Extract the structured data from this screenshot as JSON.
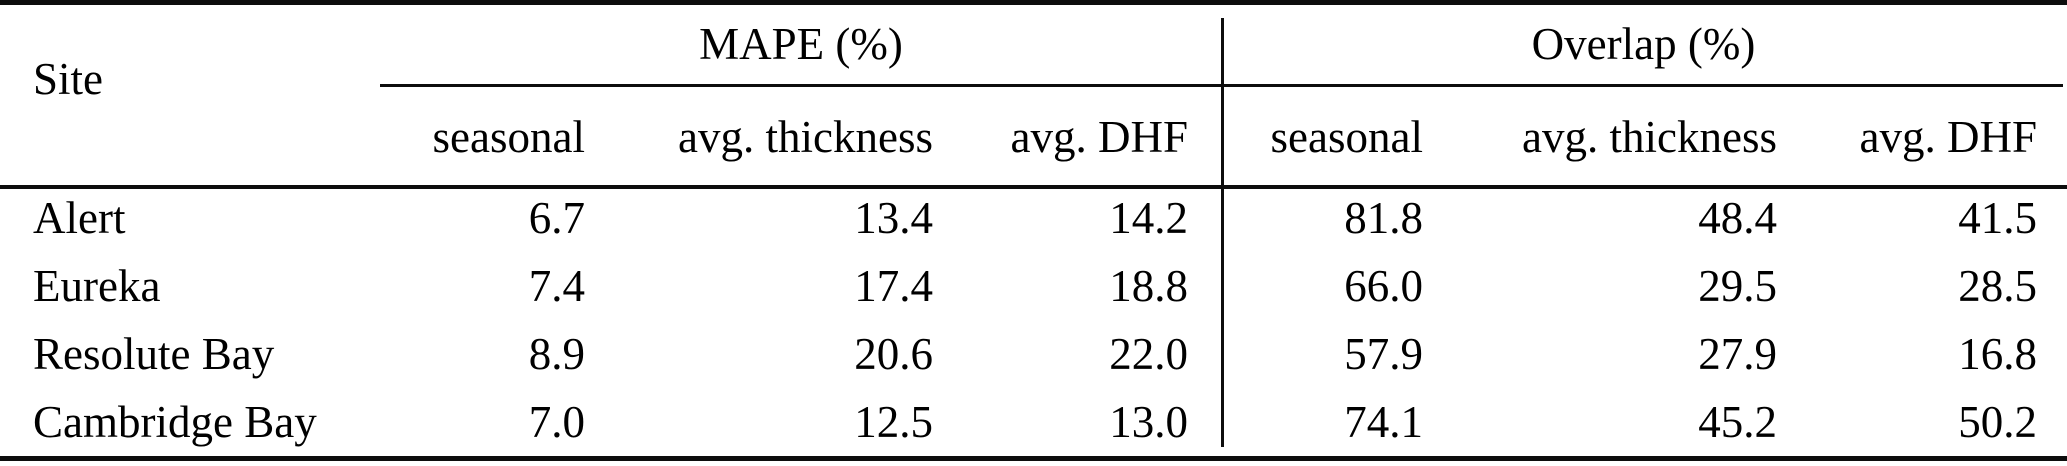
{
  "table": {
    "site_header": "Site",
    "groups": [
      {
        "label": "MAPE (%)",
        "columns": [
          "seasonal",
          "avg. thickness",
          "avg. DHF"
        ]
      },
      {
        "label": "Overlap (%)",
        "columns": [
          "seasonal",
          "avg. thickness",
          "avg. DHF"
        ]
      }
    ],
    "rows": [
      {
        "site": "Alert",
        "mape": [
          "6.7",
          "13.4",
          "14.2"
        ],
        "overlap": [
          "81.8",
          "48.4",
          "41.5"
        ]
      },
      {
        "site": "Eureka",
        "mape": [
          "7.4",
          "17.4",
          "18.8"
        ],
        "overlap": [
          "66.0",
          "29.5",
          "28.5"
        ]
      },
      {
        "site": "Resolute Bay",
        "mape": [
          "8.9",
          "20.6",
          "22.0"
        ],
        "overlap": [
          "57.9",
          "27.9",
          "16.8"
        ]
      },
      {
        "site": "Cambridge Bay",
        "mape": [
          "7.0",
          "12.5",
          "13.0"
        ],
        "overlap": [
          "74.1",
          "45.2",
          "50.2"
        ]
      }
    ]
  }
}
